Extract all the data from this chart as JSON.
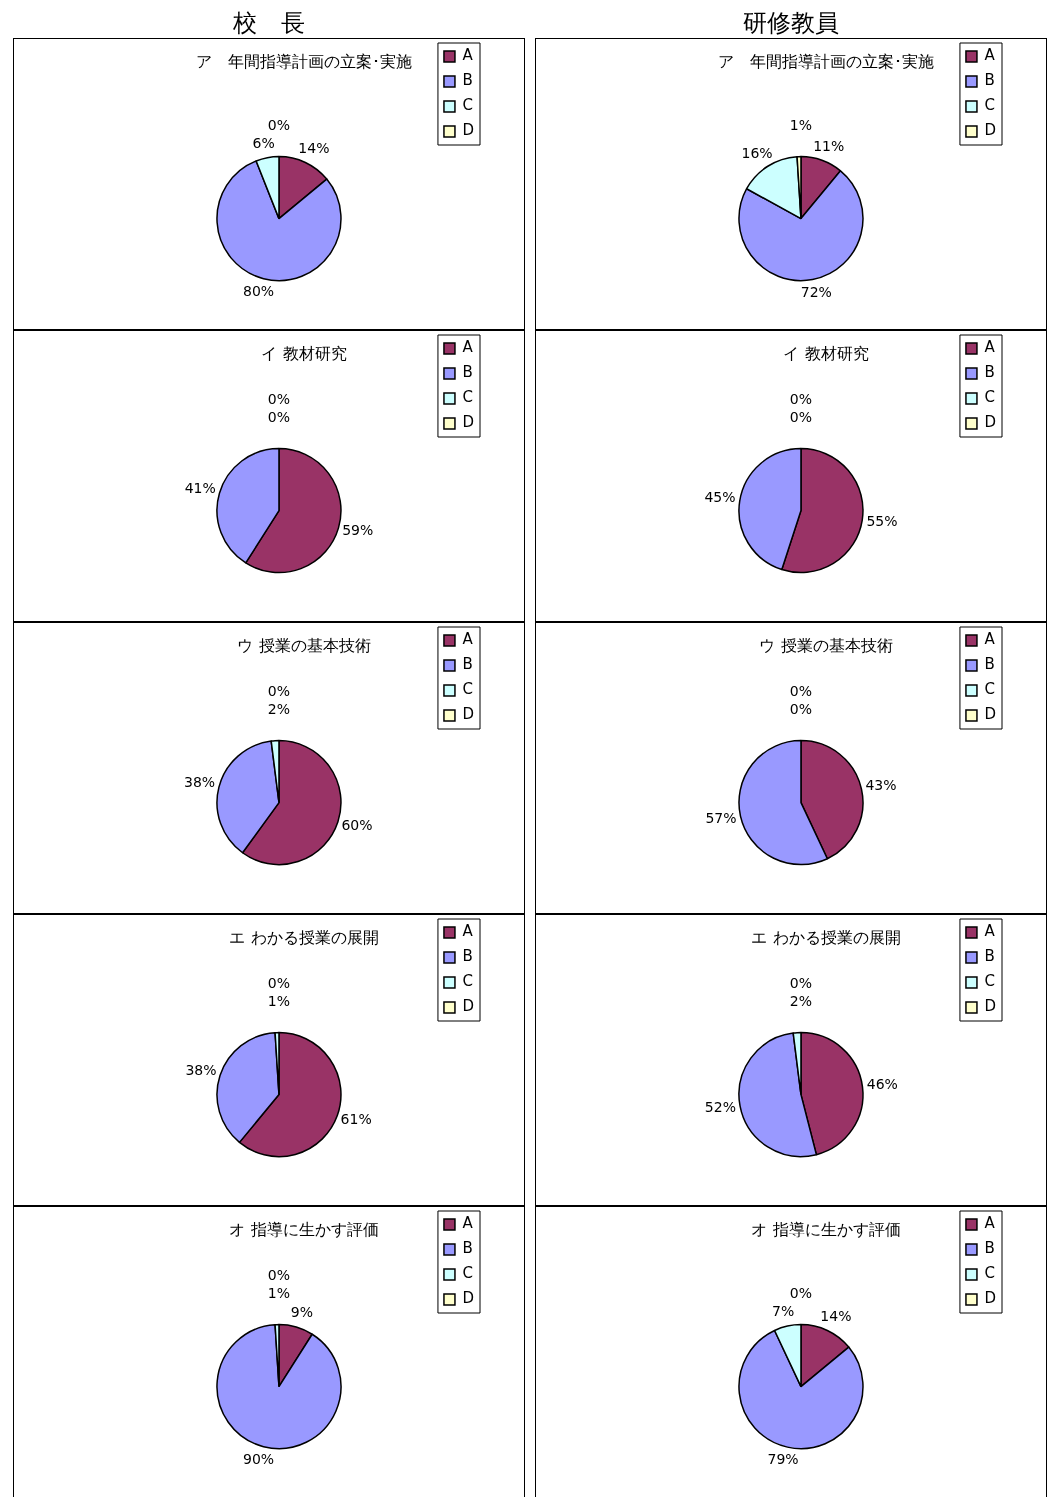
{
  "chart_data": [
    {
      "type": "pie",
      "title": "ア　年間指導計画の立案･実施",
      "annotations": [
        "校　長"
      ],
      "categories": [
        "A",
        "B",
        "C",
        "D"
      ],
      "values": [
        14,
        80,
        6,
        0
      ],
      "value_labels": [
        "14%",
        "80%",
        "6%",
        "0%"
      ],
      "colors": [
        "#993366",
        "#9999ff",
        "#ccffff",
        "#ffffcc"
      ],
      "legend": "right"
    },
    {
      "type": "pie",
      "title": "ア　年間指導計画の立案･実施",
      "annotations": [
        "研修教員"
      ],
      "categories": [
        "A",
        "B",
        "C",
        "D"
      ],
      "values": [
        11,
        72,
        16,
        1
      ],
      "value_labels": [
        "11%",
        "72%",
        "16%",
        "1%"
      ],
      "colors": [
        "#993366",
        "#9999ff",
        "#ccffff",
        "#ffffcc"
      ],
      "legend": "right"
    },
    {
      "type": "pie",
      "title": "イ 教材研究",
      "categories": [
        "A",
        "B",
        "C",
        "D"
      ],
      "values": [
        59,
        41,
        0,
        0
      ],
      "value_labels": [
        "59%",
        "41%",
        "0%",
        "0%"
      ],
      "colors": [
        "#993366",
        "#9999ff",
        "#ccffff",
        "#ffffcc"
      ],
      "legend": "right"
    },
    {
      "type": "pie",
      "title": "イ 教材研究",
      "categories": [
        "A",
        "B",
        "C",
        "D"
      ],
      "values": [
        55,
        45,
        0,
        0
      ],
      "value_labels": [
        "55%",
        "45%",
        "0%",
        "0%"
      ],
      "colors": [
        "#993366",
        "#9999ff",
        "#ccffff",
        "#ffffcc"
      ],
      "legend": "right"
    },
    {
      "type": "pie",
      "title": "ウ 授業の基本技術",
      "categories": [
        "A",
        "B",
        "C",
        "D"
      ],
      "values": [
        60,
        38,
        2,
        0
      ],
      "value_labels": [
        "60%",
        "38%",
        "2%",
        "0%"
      ],
      "colors": [
        "#993366",
        "#9999ff",
        "#ccffff",
        "#ffffcc"
      ],
      "legend": "right"
    },
    {
      "type": "pie",
      "title": "ウ 授業の基本技術",
      "categories": [
        "A",
        "B",
        "C",
        "D"
      ],
      "values": [
        43,
        57,
        0,
        0
      ],
      "value_labels": [
        "43%",
        "57%",
        "0%",
        "0%"
      ],
      "colors": [
        "#993366",
        "#9999ff",
        "#ccffff",
        "#ffffcc"
      ],
      "legend": "right"
    },
    {
      "type": "pie",
      "title": "エ わかる授業の展開",
      "categories": [
        "A",
        "B",
        "C",
        "D"
      ],
      "values": [
        61,
        38,
        1,
        0
      ],
      "value_labels": [
        "61%",
        "38%",
        "1%",
        "0%"
      ],
      "colors": [
        "#993366",
        "#9999ff",
        "#ccffff",
        "#ffffcc"
      ],
      "legend": "right"
    },
    {
      "type": "pie",
      "title": "エ わかる授業の展開",
      "categories": [
        "A",
        "B",
        "C",
        "D"
      ],
      "values": [
        46,
        52,
        2,
        0
      ],
      "value_labels": [
        "46%",
        "52%",
        "2%",
        "0%"
      ],
      "colors": [
        "#993366",
        "#9999ff",
        "#ccffff",
        "#ffffcc"
      ],
      "legend": "right"
    },
    {
      "type": "pie",
      "title": "オ 指導に生かす評価",
      "categories": [
        "A",
        "B",
        "C",
        "D"
      ],
      "values": [
        9,
        90,
        1,
        0
      ],
      "value_labels": [
        "9%",
        "90%",
        "1%",
        "0%"
      ],
      "colors": [
        "#993366",
        "#9999ff",
        "#ccffff",
        "#ffffcc"
      ],
      "legend": "right"
    },
    {
      "type": "pie",
      "title": "オ 指導に生かす評価",
      "categories": [
        "A",
        "B",
        "C",
        "D"
      ],
      "values": [
        14,
        79,
        7,
        0
      ],
      "value_labels": [
        "14%",
        "79%",
        "7%",
        "0%"
      ],
      "colors": [
        "#993366",
        "#9999ff",
        "#ccffff",
        "#ffffcc"
      ],
      "legend": "right"
    }
  ]
}
